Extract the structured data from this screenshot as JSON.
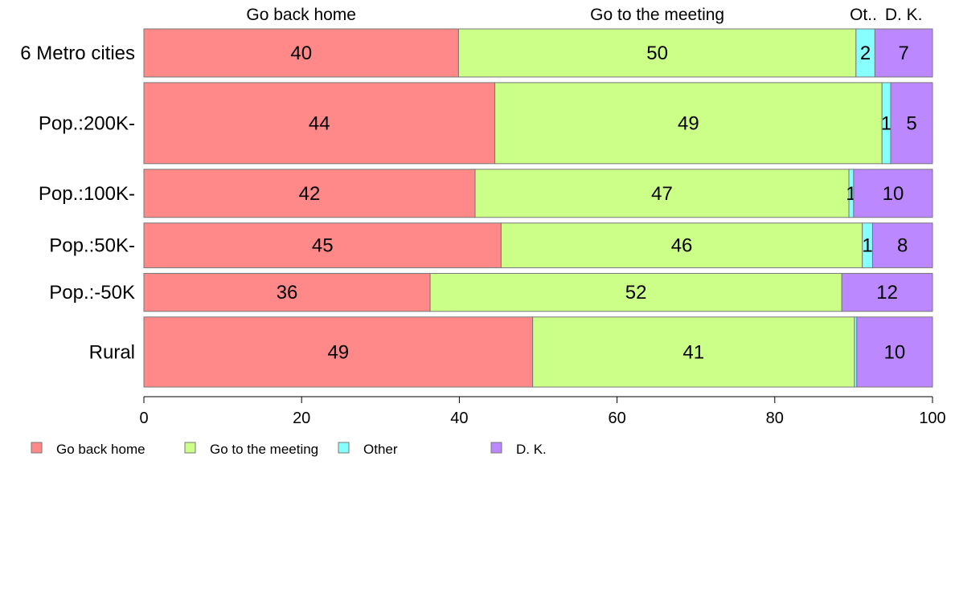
{
  "chart_data": {
    "type": "bar",
    "orientation": "horizontal",
    "stacked": true,
    "categories": [
      "6 Metro cities",
      "Pop.:200K-",
      "Pop.:100K-",
      "Pop.:50K-",
      "Pop.:-50K",
      "Rural"
    ],
    "bar_widths": [
      0.57,
      0.96,
      0.57,
      0.53,
      0.45,
      0.83
    ],
    "series": [
      {
        "name": "Go back home",
        "color": "#FF8888",
        "values": [
          39.9,
          44.5,
          42.0,
          45.3,
          36.3,
          49.3
        ],
        "labels": [
          "40",
          "44",
          "42",
          "45",
          "36",
          "49"
        ]
      },
      {
        "name": "Go to the meeting",
        "color": "#CCFF88",
        "values": [
          50.4,
          49.1,
          47.4,
          45.8,
          52.2,
          40.8
        ],
        "labels": [
          "50",
          "49",
          "47",
          "46",
          "52",
          "41"
        ]
      },
      {
        "name": "Other",
        "color": "#88FFFF",
        "values": [
          2.4,
          1.1,
          0.6,
          1.3,
          0.0,
          0.3
        ],
        "labels": [
          "2",
          "1",
          "1",
          "1",
          "",
          ""
        ]
      },
      {
        "name": "D. K.",
        "color": "#BB88FF",
        "values": [
          7.3,
          5.3,
          10.0,
          7.6,
          11.5,
          9.6
        ],
        "labels": [
          "7",
          "5",
          "10",
          "8",
          "12",
          "10"
        ]
      }
    ],
    "top_labels": [
      "Go back home",
      "Go to the meeting",
      "Ot..",
      "D. K."
    ],
    "xlim": [
      0,
      100
    ],
    "xticks": [
      0,
      20,
      40,
      60,
      80,
      100
    ],
    "xtick_labels": [
      "0",
      "20",
      "40",
      "60",
      "80",
      "100"
    ],
    "legend": {
      "placement": "bottom-left",
      "entries": [
        "Go back home",
        "Go to the meeting",
        "Other",
        "D. K."
      ]
    },
    "grid": false
  }
}
